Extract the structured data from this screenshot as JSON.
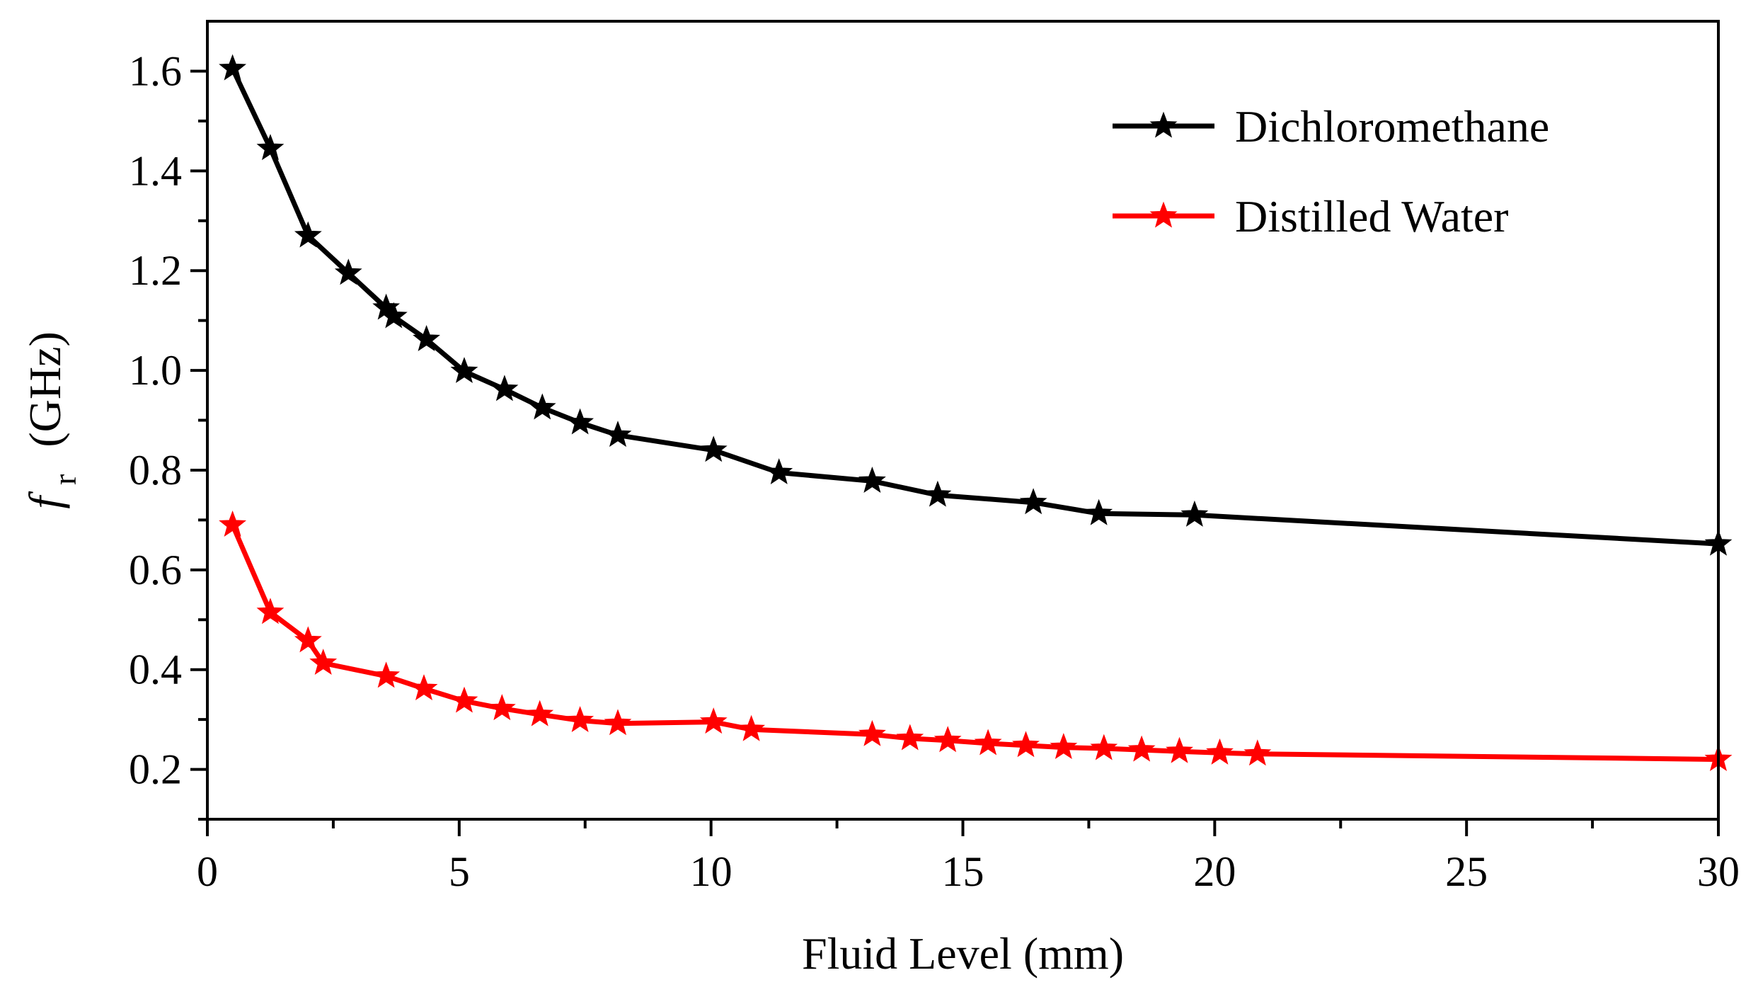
{
  "chart_data": {
    "type": "line",
    "title": "",
    "xlabel": "Fluid Level (mm)",
    "ylabel": {
      "symbol": "f",
      "subscript": "r",
      "unit": "(GHz)"
    },
    "xlim": [
      0,
      30
    ],
    "ylim": [
      0.1,
      1.7
    ],
    "xticks": [
      "0",
      "5",
      "10",
      "15",
      "20",
      "25",
      "30"
    ],
    "yticks": [
      "0.2",
      "0.4",
      "0.6",
      "0.8",
      "1.0",
      "1.2",
      "1.4",
      "1.6"
    ],
    "grid": false,
    "legend_position": "top-right",
    "series": [
      {
        "name": "Dichloromethane",
        "color": "#000000",
        "marker": "star",
        "x": [
          0.5,
          1.25,
          2.0,
          2.8,
          3.55,
          3.7,
          4.35,
          5.1,
          5.9,
          6.65,
          7.4,
          8.15,
          10.05,
          11.35,
          13.2,
          14.5,
          16.4,
          17.7,
          19.6,
          30.0
        ],
        "y": [
          1.605,
          1.445,
          1.27,
          1.195,
          1.125,
          1.108,
          1.062,
          0.998,
          0.962,
          0.925,
          0.895,
          0.87,
          0.84,
          0.795,
          0.778,
          0.75,
          0.735,
          0.713,
          0.71,
          0.652
        ]
      },
      {
        "name": "Distilled Water",
        "color": "#ff0000",
        "marker": "star",
        "x": [
          0.5,
          1.25,
          2.0,
          2.3,
          3.55,
          4.3,
          5.1,
          5.85,
          6.6,
          7.4,
          8.15,
          10.05,
          10.8,
          13.2,
          13.95,
          14.7,
          15.5,
          16.25,
          17.0,
          17.8,
          18.55,
          19.3,
          20.1,
          20.85,
          30.0
        ],
        "y": [
          0.69,
          0.515,
          0.458,
          0.413,
          0.387,
          0.362,
          0.337,
          0.322,
          0.31,
          0.298,
          0.292,
          0.295,
          0.28,
          0.27,
          0.262,
          0.258,
          0.252,
          0.248,
          0.244,
          0.242,
          0.239,
          0.236,
          0.233,
          0.231,
          0.22
        ]
      }
    ]
  }
}
